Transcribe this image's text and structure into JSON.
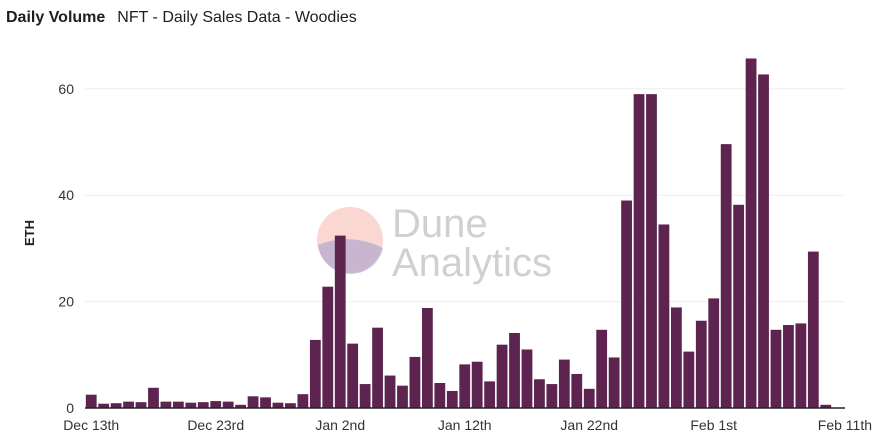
{
  "header": {
    "title": "Daily Volume",
    "subtitle": "NFT - Daily Sales Data - Woodies"
  },
  "watermark": {
    "line1": "Dune",
    "line2": "Analytics"
  },
  "colors": {
    "bar": "#5e2450",
    "grid": "#eeeeee",
    "axis_text": "#333333",
    "baseline": "#222222"
  },
  "chart_data": {
    "type": "bar",
    "title": "Daily Volume",
    "subtitle": "NFT - Daily Sales Data - Woodies",
    "xlabel": "",
    "ylabel": "ETH",
    "ylim": [
      0,
      70
    ],
    "yticks": [
      0,
      20,
      40,
      60
    ],
    "grid": true,
    "start_date": "Dec 13th",
    "xtick_labels": [
      "Dec 13th",
      "Dec 23rd",
      "Jan 2nd",
      "Jan 12th",
      "Jan 22nd",
      "Feb 1st",
      "Feb 11th"
    ],
    "values": [
      2.5,
      0.8,
      0.9,
      1.2,
      1.1,
      3.8,
      1.2,
      1.2,
      1.0,
      1.1,
      1.3,
      1.2,
      0.6,
      2.2,
      2.0,
      1.0,
      0.9,
      2.6,
      12.8,
      22.8,
      32.4,
      12.1,
      4.5,
      15.1,
      6.1,
      4.2,
      9.6,
      18.8,
      4.7,
      3.2,
      8.2,
      8.7,
      5.0,
      11.9,
      14.1,
      11.0,
      5.4,
      4.5,
      9.1,
      6.4,
      3.6,
      14.7,
      9.5,
      39.0,
      59.0,
      59.0,
      34.5,
      18.9,
      10.6,
      16.4,
      20.6,
      49.6,
      38.2,
      65.7,
      62.7,
      14.7,
      15.6,
      15.9,
      29.4,
      0.6
    ]
  }
}
